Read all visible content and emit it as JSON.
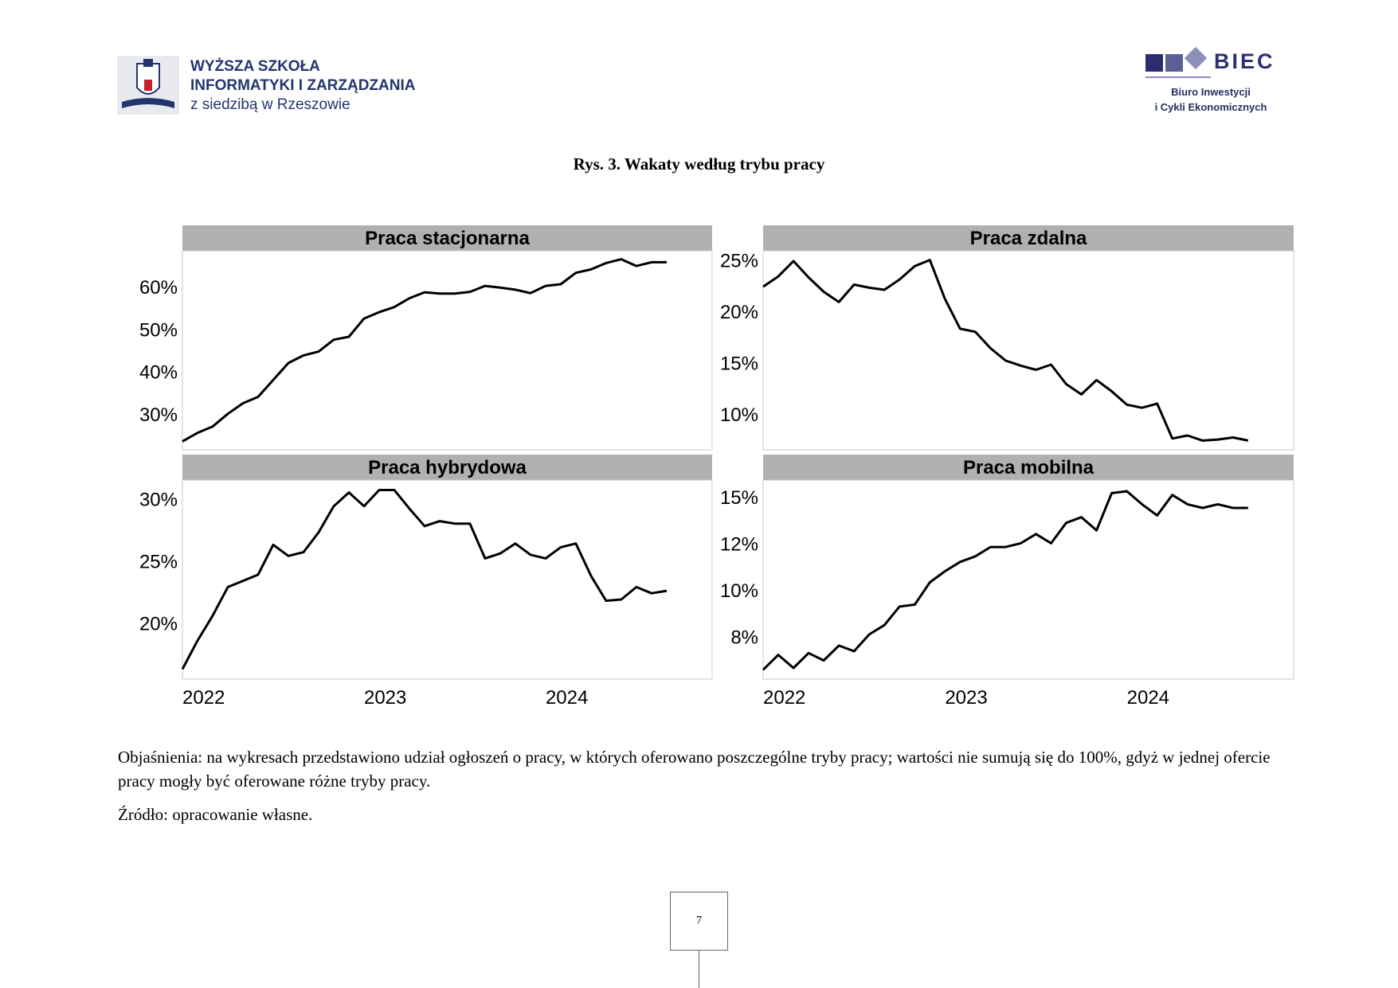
{
  "header": {
    "left_logo": {
      "line1": "WYŻSZA SZKOŁA",
      "line2": "INFORMATYKI I ZARZĄDZANIA",
      "line3": "z siedzibą w Rzeszowie"
    },
    "right_logo": {
      "name": "BIEC",
      "sub1": "Biuro Inwestycji",
      "sub2": "i Cykli Ekonomicznych"
    }
  },
  "figure_title": "Rys. 3. Wakaty według trybu pracy",
  "chart_data": [
    {
      "type": "line",
      "title": "Praca stacjonarna",
      "xlabel": "",
      "ylabel": "",
      "x_ticks": [
        "2022",
        "2023",
        "2024"
      ],
      "y_ticks": [
        "30%",
        "40%",
        "50%",
        "60%"
      ],
      "y_tick_values": [
        30,
        40,
        50,
        60
      ],
      "xlim": [
        2022.0,
        2024.917
      ],
      "ylim": [
        21.5,
        68.5
      ],
      "grid": false,
      "series": [
        {
          "x_start": 2022.0,
          "x_step": 0.08333,
          "values": [
            23.5,
            25.5,
            27.0,
            30.0,
            32.5,
            34.0,
            38.0,
            42.0,
            43.8,
            44.7,
            47.5,
            48.2,
            52.5,
            54.0,
            55.2,
            57.3,
            58.7,
            58.4,
            58.4,
            58.8,
            60.2,
            59.8,
            59.3,
            58.5,
            60.2,
            60.6,
            63.3,
            64.1,
            65.6,
            66.5,
            64.9,
            65.8,
            65.8
          ]
        }
      ]
    },
    {
      "type": "line",
      "title": "Praca zdalna",
      "xlabel": "",
      "ylabel": "",
      "x_ticks": [
        "2022",
        "2023",
        "2024"
      ],
      "y_ticks": [
        "10%",
        "15%",
        "20%",
        "25%"
      ],
      "y_tick_values": [
        10,
        15,
        20,
        25
      ],
      "xlim": [
        2022.0,
        2024.917
      ],
      "ylim": [
        6.5,
        25.9
      ],
      "grid": false,
      "series": [
        {
          "x_start": 2022.0,
          "x_step": 0.08333,
          "values": [
            22.4,
            23.4,
            24.9,
            23.3,
            21.9,
            20.9,
            22.6,
            22.3,
            22.1,
            23.1,
            24.4,
            25.0,
            21.2,
            18.3,
            18.0,
            16.4,
            15.2,
            14.7,
            14.3,
            14.8,
            12.9,
            11.9,
            13.3,
            12.2,
            10.9,
            10.6,
            11.0,
            7.6,
            7.9,
            7.4,
            7.5,
            7.7,
            7.4
          ]
        }
      ]
    },
    {
      "type": "line",
      "title": "Praca hybrydowa",
      "xlabel": "",
      "ylabel": "",
      "x_ticks": [
        "2022",
        "2023",
        "2024"
      ],
      "y_ticks": [
        "20%",
        "25%",
        "30%"
      ],
      "y_tick_values": [
        20,
        25,
        30
      ],
      "xlim": [
        2022.0,
        2024.917
      ],
      "ylim": [
        15.5,
        31.5
      ],
      "grid": false,
      "series": [
        {
          "x_start": 2022.0,
          "x_step": 0.08333,
          "values": [
            16.3,
            18.6,
            20.6,
            22.9,
            23.4,
            23.9,
            26.3,
            25.4,
            25.7,
            27.3,
            29.4,
            30.5,
            29.4,
            30.7,
            30.7,
            29.2,
            27.8,
            28.2,
            28.0,
            28.0,
            25.2,
            25.6,
            26.4,
            25.5,
            25.2,
            26.1,
            26.4,
            23.8,
            21.8,
            21.9,
            22.9,
            22.4,
            22.6
          ]
        }
      ]
    },
    {
      "type": "line",
      "title": "Praca mobilna",
      "xlabel": "",
      "ylabel": "",
      "x_ticks": [
        "2022",
        "2023",
        "2024"
      ],
      "y_ticks": [
        "8%",
        "10%",
        "12%",
        "15%"
      ],
      "y_tick_values": [
        7.5,
        10,
        12.5,
        15
      ],
      "xlim": [
        2022.0,
        2024.917
      ],
      "ylim": [
        5.2,
        15.9
      ],
      "grid": false,
      "series": [
        {
          "x_start": 2022.0,
          "x_step": 0.08333,
          "values": [
            5.7,
            6.5,
            5.8,
            6.6,
            6.2,
            7.0,
            6.7,
            7.6,
            8.1,
            9.1,
            9.2,
            10.4,
            11.0,
            11.5,
            11.8,
            12.3,
            12.3,
            12.5,
            13.0,
            12.5,
            13.6,
            13.9,
            13.2,
            15.2,
            15.3,
            14.6,
            14.0,
            15.1,
            14.6,
            14.4,
            14.6,
            14.4,
            14.4
          ]
        }
      ]
    }
  ],
  "notes": {
    "explanation": "Objaśnienia: na wykresach przedstawiono udział ogłoszeń o pracy, w których oferowano poszczególne tryby pracy; wartości nie sumują się do 100%, gdyż w jednej ofercie pracy mogły być oferowane różne tryby pracy.",
    "source": "Źródło: opracowanie własne."
  },
  "page_number": "7",
  "colors": {
    "panel_header": "#b0b0b0",
    "line": "#000000",
    "logo_blue": "#23356f"
  }
}
